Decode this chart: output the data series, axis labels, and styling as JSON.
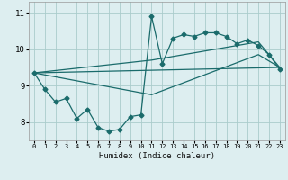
{
  "xlabel": "Humidex (Indice chaleur)",
  "bg_color": "#ddeef0",
  "grid_color": "#aacccc",
  "line_color": "#1a6b6b",
  "xlim": [
    -0.5,
    23.5
  ],
  "ylim": [
    7.5,
    11.3
  ],
  "xticks": [
    0,
    1,
    2,
    3,
    4,
    5,
    6,
    7,
    8,
    9,
    10,
    11,
    12,
    13,
    14,
    15,
    16,
    17,
    18,
    19,
    20,
    21,
    22,
    23
  ],
  "yticks": [
    8,
    9,
    10,
    11
  ],
  "line1_x": [
    0,
    1,
    2,
    3,
    4,
    5,
    6,
    7,
    8,
    9,
    10,
    11,
    12,
    13,
    14,
    15,
    16,
    17,
    18,
    19,
    20,
    21,
    22,
    23
  ],
  "line1_y": [
    9.35,
    8.9,
    8.55,
    8.65,
    8.1,
    8.35,
    7.85,
    7.75,
    7.8,
    8.15,
    8.2,
    10.9,
    9.6,
    10.3,
    10.4,
    10.35,
    10.45,
    10.45,
    10.35,
    10.15,
    10.25,
    10.1,
    9.85,
    9.45
  ],
  "line2_x": [
    0,
    23
  ],
  "line2_y": [
    9.35,
    9.5
  ],
  "line3_x": [
    0,
    11,
    21,
    23
  ],
  "line3_y": [
    9.35,
    9.7,
    10.2,
    9.5
  ],
  "line4_x": [
    0,
    11,
    21,
    23
  ],
  "line4_y": [
    9.35,
    8.75,
    9.85,
    9.5
  ]
}
